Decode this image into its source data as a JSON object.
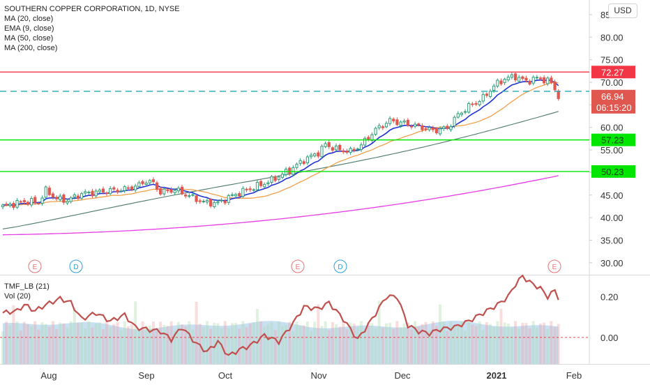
{
  "chart_data": [
    {
      "type": "candlestick",
      "title": "SOUTHERN COPPER CORPORATION, 1D, NYSE",
      "currency": "USD",
      "indicators": [
        "MA (20, close)",
        "EMA (9, close)",
        "MA (50, close)",
        "MA (200, close)"
      ],
      "x_ticks": [
        "Aug",
        "Sep",
        "Oct",
        "Nov",
        "Dec",
        "2021",
        "Feb"
      ],
      "y_ticks": [
        "30.00",
        "35.00",
        "40.00",
        "45.00",
        "50.00",
        "55.00",
        "60.00",
        "65.00",
        "70.00",
        "75.00",
        "80.00",
        "85.00"
      ],
      "ylim": [
        27.5,
        87.0
      ],
      "horizontal_lines": [
        {
          "value": 72.27,
          "label": "72.27",
          "color": "#f23645",
          "style": "solid"
        },
        {
          "value": 68.0,
          "label": "",
          "color": "#26a6b8",
          "style": "dashed"
        },
        {
          "value": 57.23,
          "label": "57.23",
          "color": "#00e600",
          "style": "solid"
        },
        {
          "value": 50.23,
          "label": "50.23",
          "color": "#00e600",
          "style": "solid"
        }
      ],
      "last_price": {
        "value": 66.94,
        "label": "66.94",
        "countdown": "06:15:20",
        "color": "#e0574f"
      },
      "series_colors": {
        "ma20": "#f0a04b",
        "ema9": "#1e2fd6",
        "ma50": "#4d7a69",
        "ma200": "#e63ce6",
        "up": "#2e9e78",
        "down": "#e0574f"
      },
      "event_markers": [
        {
          "label": "E",
          "color": "#e57373"
        },
        {
          "label": "D",
          "color": "#2aa1d8"
        },
        {
          "label": "E",
          "color": "#e57373"
        },
        {
          "label": "D",
          "color": "#2aa1d8"
        },
        {
          "label": "E",
          "color": "#e57373"
        }
      ]
    },
    {
      "type": "line",
      "indicators": [
        "TMF_LB (21)",
        "Vol (20)"
      ],
      "y_ticks": [
        "0.20",
        "0.00"
      ],
      "ylim": [
        -0.13,
        0.3
      ],
      "zero_line_color": "#d94e4e",
      "tmf_color": "#c0504d",
      "volume_color": "#9cc7ea"
    }
  ]
}
